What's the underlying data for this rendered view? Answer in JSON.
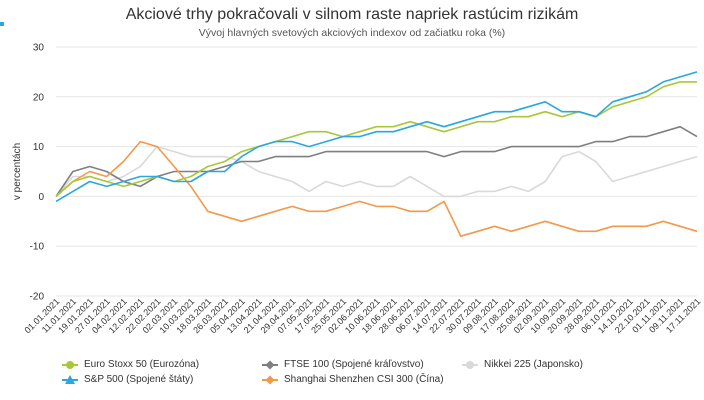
{
  "title": "Akciové trhy pokračovali v silnom raste napriek rastúcim rizikám",
  "subtitle": "Vývoj hlavných svetových akciových indexov od začiatku roka (%)",
  "colors": {
    "eurostoxx": "#a8c83a",
    "ftse": "#7f7f7f",
    "nikkei": "#d9d9d9",
    "sp500": "#2aa7df",
    "shanghai": "#f2994a"
  },
  "chart_data": {
    "type": "line",
    "ylabel": "v percentách",
    "ylim": [
      -20,
      30
    ],
    "yticks": [
      "30",
      "20",
      "10",
      "0",
      "-10",
      "-20"
    ],
    "grid": true,
    "legend_placement": "bottom",
    "x_tick_labels": [
      "01.01.2021",
      "11.01.2021",
      "19.01.2021",
      "27.01.2021",
      "04.02.2021",
      "12.02.2021",
      "22.02.2021",
      "02.03.2021",
      "10.03.2021",
      "18.03.2021",
      "26.03.2021",
      "05.04.2021",
      "13.04.2021",
      "21.04.2021",
      "29.04.2021",
      "07.05.2021",
      "17.05.2021",
      "25.05.2021",
      "02.06.2021",
      "10.06.2021",
      "18.06.2021",
      "28.06.2021",
      "06.07.2021",
      "14.07.2021",
      "22.07.2021",
      "30.07.2021",
      "09.08.2021",
      "17.08.2021",
      "25.08.2021",
      "02.09.2021",
      "10.09.2021",
      "20.09.2021",
      "28.09.2021",
      "06.10.2021",
      "14.10.2021",
      "22.10.2021",
      "01.11.2021",
      "09.11.2021",
      "17.11.2021"
    ],
    "series": [
      {
        "key": "eurostoxx",
        "name": "Euro Stoxx 50 (Eurozóna)",
        "marker": "circle",
        "values": [
          0,
          3,
          4,
          3,
          2,
          3,
          4,
          3,
          4,
          6,
          7,
          9,
          10,
          11,
          12,
          13,
          13,
          12,
          13,
          14,
          14,
          15,
          14,
          13,
          14,
          15,
          15,
          16,
          16,
          17,
          16,
          17,
          16,
          18,
          19,
          20,
          22,
          23,
          23
        ]
      },
      {
        "key": "ftse",
        "name": "FTSE 100 (Spojené kráľovstvo)",
        "marker": "diamond",
        "values": [
          0,
          5,
          6,
          5,
          3,
          2,
          4,
          5,
          5,
          5,
          6,
          7,
          7,
          8,
          8,
          8,
          9,
          9,
          9,
          9,
          9,
          9,
          9,
          8,
          9,
          9,
          9,
          10,
          10,
          10,
          10,
          10,
          11,
          11,
          12,
          12,
          13,
          14,
          12
        ]
      },
      {
        "key": "nikkei",
        "name": "Nikkei 225 (Japonsko)",
        "marker": "circle",
        "values": [
          0,
          4,
          4,
          3,
          4,
          6,
          10,
          9,
          8,
          8,
          8,
          7,
          5,
          4,
          3,
          1,
          3,
          2,
          3,
          2,
          2,
          4,
          2,
          0,
          0,
          1,
          1,
          2,
          1,
          3,
          8,
          9,
          7,
          3,
          4,
          5,
          6,
          7,
          8
        ]
      },
      {
        "key": "sp500",
        "name": "S&P 500 (Spojené štáty)",
        "marker": "triangle",
        "values": [
          -1,
          1,
          3,
          2,
          3,
          4,
          4,
          3,
          3,
          5,
          5,
          8,
          10,
          11,
          11,
          10,
          11,
          12,
          12,
          13,
          13,
          14,
          15,
          14,
          15,
          16,
          17,
          17,
          18,
          19,
          17,
          17,
          16,
          19,
          20,
          21,
          23,
          24,
          25
        ]
      },
      {
        "key": "shanghai",
        "name": "Shanghai Shenzhen CSI 300 (Čína)",
        "marker": "diamond",
        "values": [
          0,
          3,
          5,
          4,
          7,
          11,
          10,
          6,
          2,
          -3,
          -4,
          -5,
          -4,
          -3,
          -2,
          -3,
          -3,
          -2,
          -1,
          -2,
          -2,
          -3,
          -3,
          -1,
          -8,
          -7,
          -6,
          -7,
          -6,
          -5,
          -6,
          -7,
          -7,
          -6,
          -6,
          -6,
          -5,
          -6,
          -7
        ]
      }
    ]
  }
}
